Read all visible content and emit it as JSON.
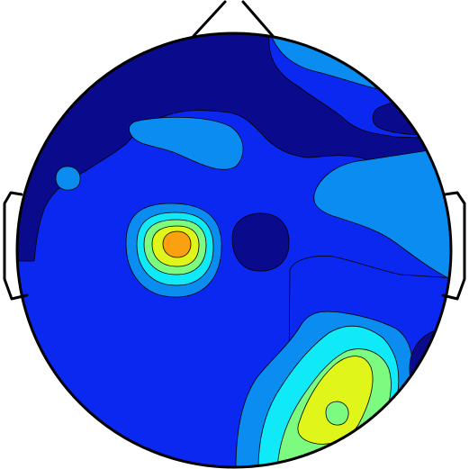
{
  "figure": {
    "kind": "scalp topographic map",
    "labels": [],
    "colors": {
      "background": "#ffffff",
      "outline": "#000000",
      "contour_line": "#000000",
      "level_0_navy": "#0a0a8c",
      "level_1_blue": "#0a28f0",
      "level_2_azure": "#0a8cf0",
      "level_3_cyan": "#10eaf8",
      "level_4_green": "#7dfa80",
      "level_5_yellow": "#e0f51a",
      "level_6_orange": "#fba00e"
    }
  }
}
